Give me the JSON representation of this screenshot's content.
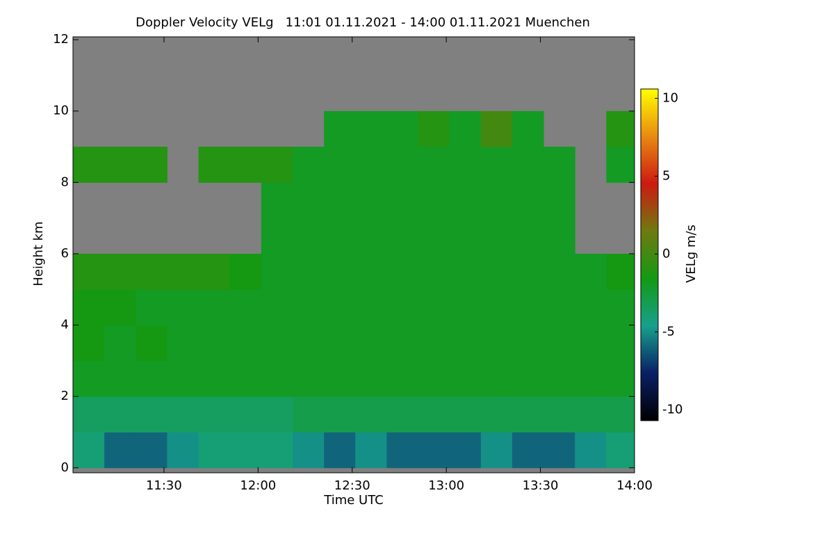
{
  "chart_data": {
    "type": "heatmap",
    "title": "Doppler Velocity VELg   11:01 01.11.2021 - 14:00 01.11.2021 Muenchen",
    "x_label": "Time UTC",
    "y_label": "Height km",
    "colorbar_label": "VELg m/s",
    "xlim": [
      661,
      840
    ],
    "xticks": [
      {
        "value": 690,
        "label": "11:30"
      },
      {
        "value": 720,
        "label": "12:00"
      },
      {
        "value": 750,
        "label": "12:30"
      },
      {
        "value": 780,
        "label": "13:00"
      },
      {
        "value": 810,
        "label": "13:30"
      },
      {
        "value": 840,
        "label": "14:00"
      }
    ],
    "ylim": [
      -0.14,
      12.08
    ],
    "yticks": [
      0,
      2,
      4,
      6,
      8,
      10,
      12
    ],
    "zlim": [
      -10.7,
      10.6
    ],
    "zticks": [
      -10,
      -5,
      0,
      5,
      10
    ],
    "colorscale": [
      "#000000",
      "#0a1f66",
      "#17a08c",
      "#139a13",
      "#6f7a10",
      "#cc1a10",
      "#e88a10",
      "#ffff00"
    ],
    "missing_color": "#808080",
    "xbins": [
      661,
      671,
      681,
      691,
      701,
      711,
      721,
      731,
      741,
      751,
      761,
      771,
      781,
      791,
      801,
      811,
      821,
      831,
      840
    ],
    "ybins": [
      0,
      1,
      2,
      3,
      4,
      5,
      6,
      7,
      8,
      9,
      10,
      11,
      12
    ],
    "z": [
      [
        -4,
        -6,
        -6,
        -5,
        -4,
        -4,
        -4,
        -5,
        -6,
        -5,
        -6,
        -6,
        -6,
        -5,
        -6,
        -6,
        -5,
        -4
      ],
      [
        -3.5,
        -3.5,
        -3.5,
        -3.5,
        -3.5,
        -3.5,
        -3.5,
        -3,
        -3,
        -3,
        -3,
        -3,
        -3,
        -3,
        -3,
        -3,
        -3,
        -3
      ],
      [
        -2,
        -2,
        -2,
        -2,
        -2,
        -2,
        -2,
        -2,
        -2,
        -2,
        -2,
        -2,
        -2,
        -2,
        -2,
        -2,
        -2,
        -2
      ],
      [
        -1.5,
        -2,
        -1.5,
        -2,
        -2,
        -2,
        -2,
        -2,
        -2,
        -2,
        -2,
        -2,
        -2,
        -2,
        -2,
        -2,
        -2,
        -2
      ],
      [
        -1.5,
        -1.5,
        -2,
        -2,
        -2,
        -2,
        -2,
        -2,
        -2,
        -2,
        -2,
        -2,
        -2,
        -2,
        -2,
        -2,
        -2,
        -2
      ],
      [
        -1,
        -1,
        -1,
        -1,
        -1,
        -1.5,
        -2,
        -2,
        -2,
        -2,
        -2,
        -2,
        -2,
        -2,
        -2,
        -2,
        -2,
        -1.5
      ],
      [
        null,
        null,
        null,
        null,
        null,
        null,
        -2,
        -2,
        -2,
        -2,
        -2,
        -2,
        -2,
        -2,
        -2,
        -2,
        null,
        null
      ],
      [
        null,
        null,
        null,
        null,
        null,
        null,
        -2,
        -2,
        -2,
        -2,
        -2,
        -2,
        -2,
        -2,
        -2,
        -2,
        null,
        null
      ],
      [
        -1,
        -1,
        -1,
        null,
        -1,
        -1,
        -1,
        -2,
        -2,
        -2,
        -2,
        -2,
        -2,
        -2,
        -2,
        -2,
        null,
        -2
      ],
      [
        null,
        null,
        null,
        null,
        null,
        null,
        null,
        null,
        -2,
        -2,
        -2,
        -1,
        -2,
        0,
        -2,
        null,
        null,
        -1
      ],
      [
        null,
        null,
        null,
        null,
        null,
        null,
        null,
        null,
        null,
        null,
        null,
        null,
        null,
        null,
        null,
        null,
        null,
        null
      ],
      [
        null,
        null,
        null,
        null,
        null,
        null,
        null,
        null,
        null,
        null,
        null,
        null,
        null,
        null,
        null,
        null,
        null,
        null
      ]
    ]
  }
}
